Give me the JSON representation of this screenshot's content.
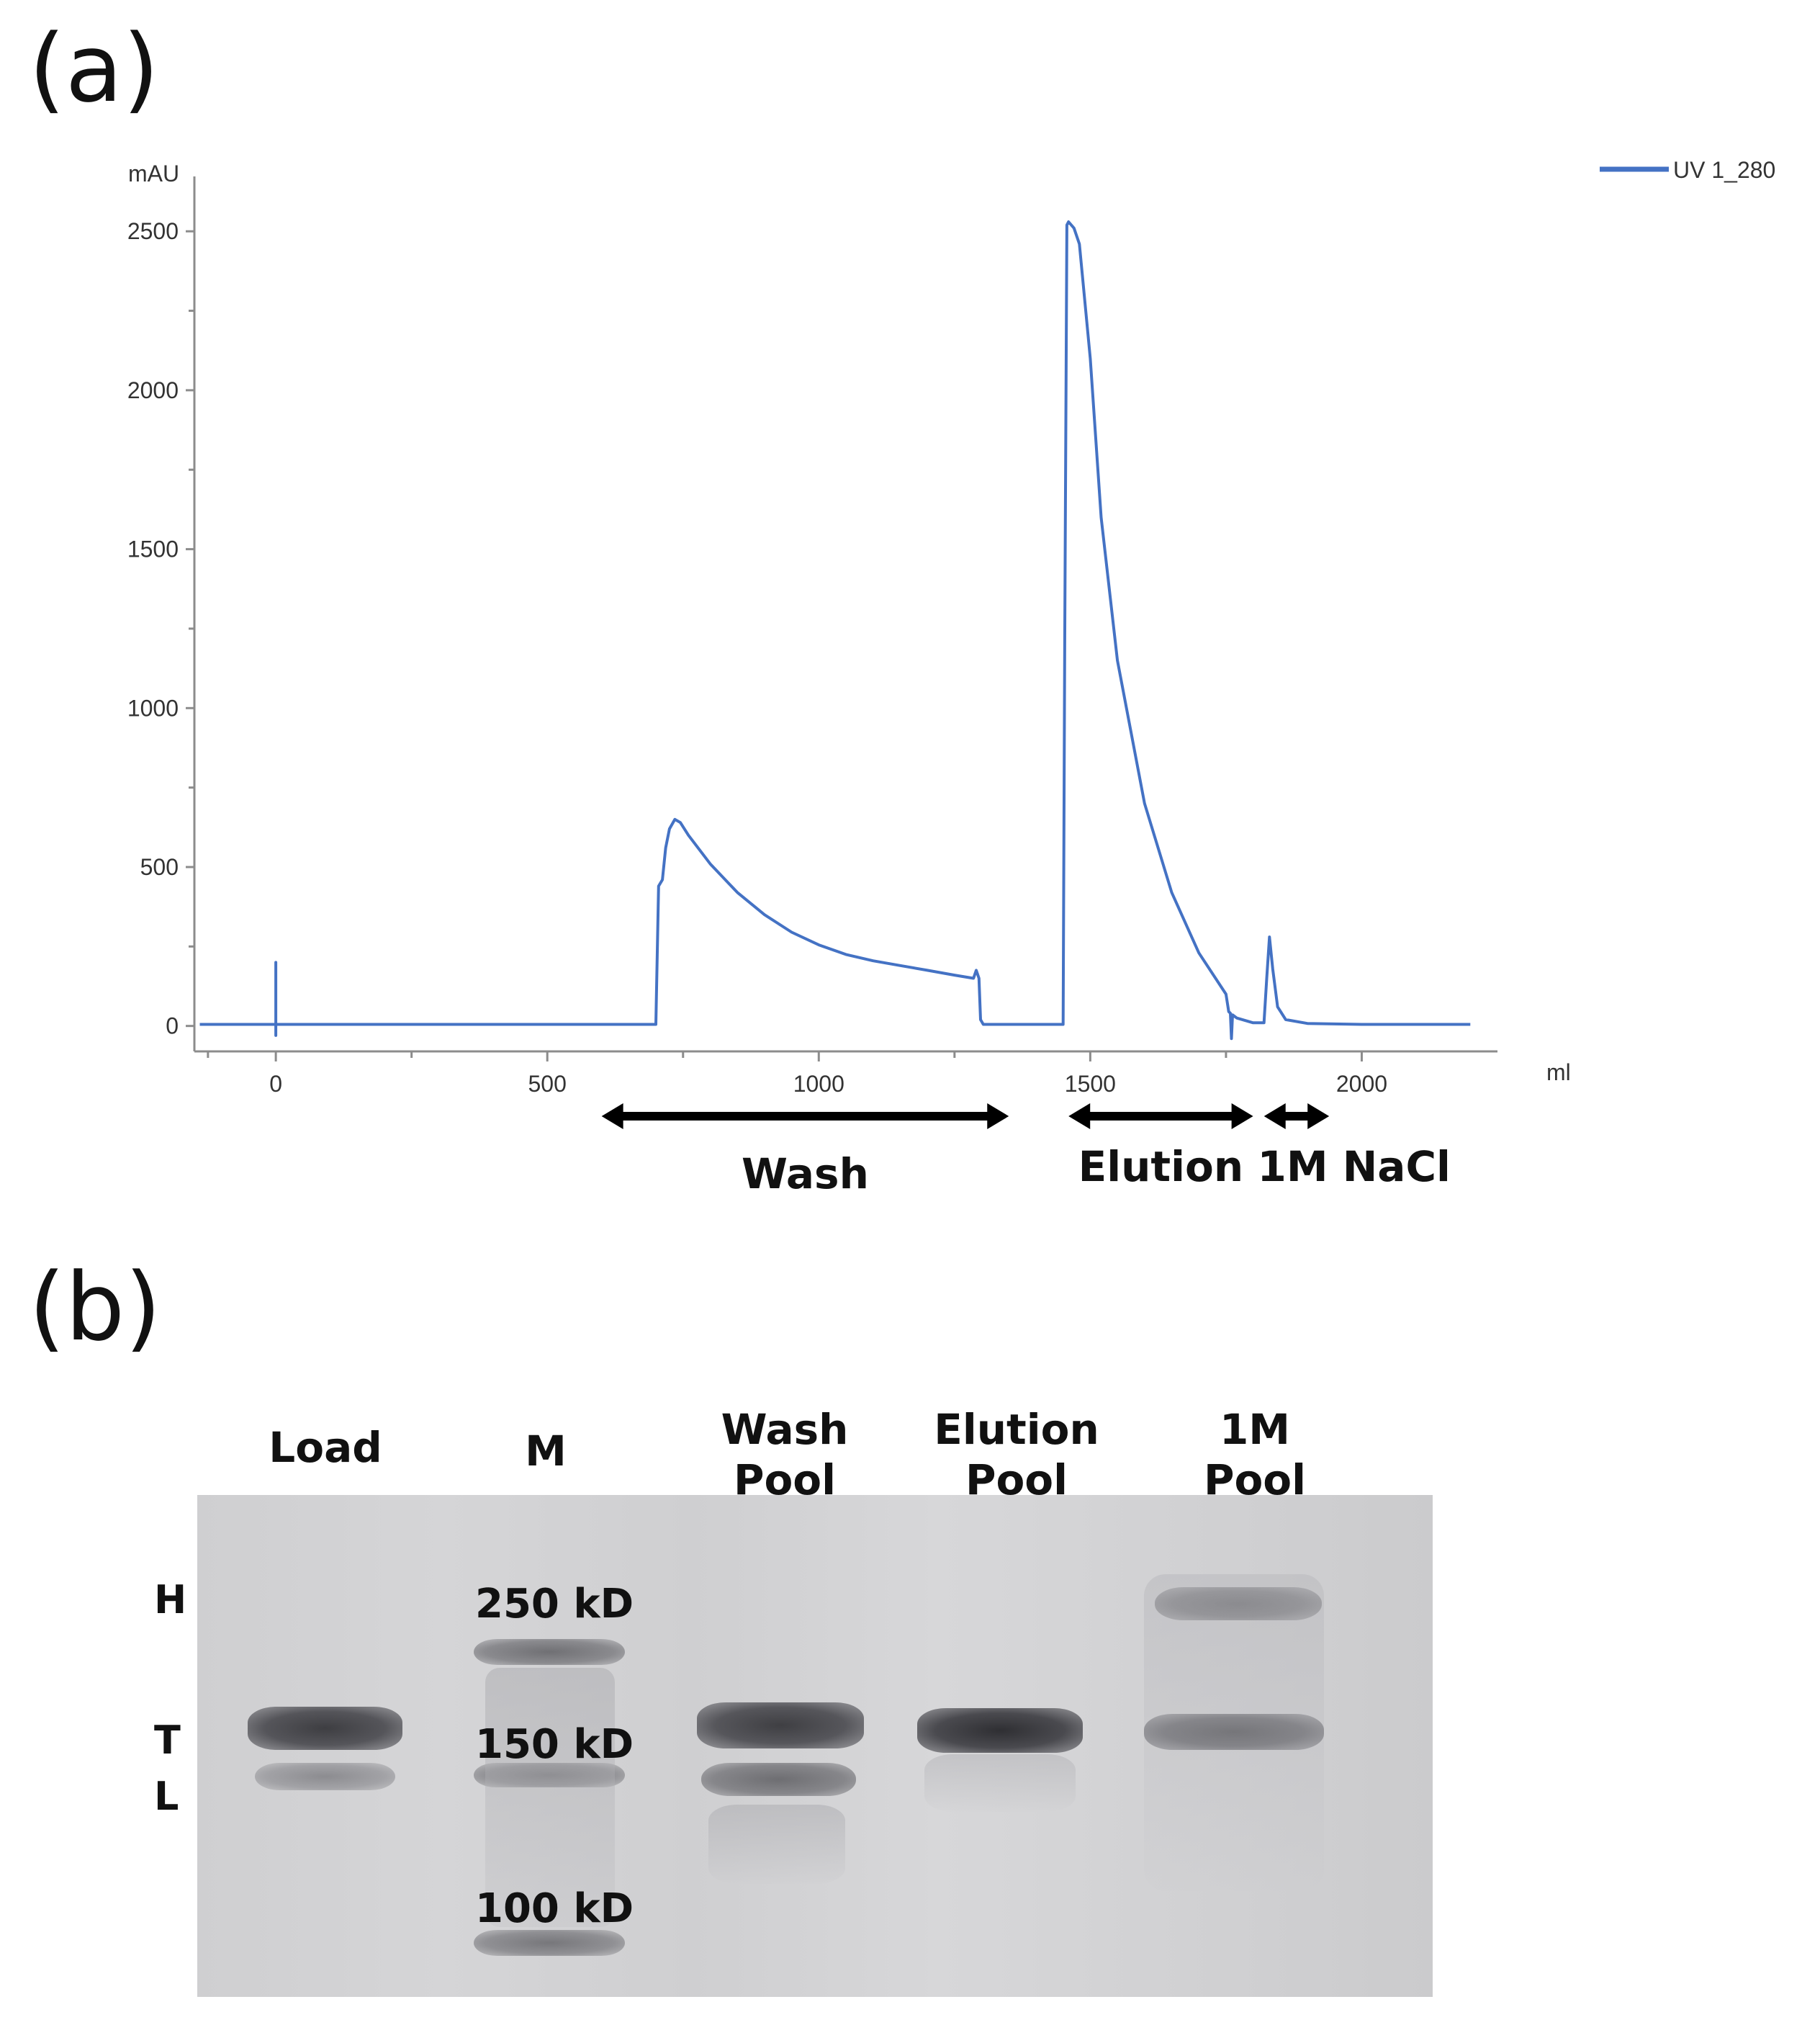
{
  "panel_a": {
    "label": "(a)",
    "chart_data": {
      "type": "line",
      "title": "",
      "xlabel": "ml",
      "ylabel": "mAU",
      "xlim": [
        -150,
        2250
      ],
      "ylim": [
        -80,
        2650
      ],
      "x_ticks": [
        0,
        500,
        1000,
        1500,
        2000
      ],
      "y_ticks": [
        0,
        500,
        1000,
        1500,
        2000,
        2500
      ],
      "grid": false,
      "legend": {
        "placement": "top-right",
        "entries": [
          "UV 1_280"
        ]
      },
      "series": [
        {
          "name": "UV 1_280",
          "color": "#4472c4",
          "x": [
            -140,
            0,
            0,
            0,
            0,
            700,
            705,
            712,
            718,
            725,
            735,
            745,
            760,
            800,
            850,
            900,
            950,
            1000,
            1050,
            1100,
            1150,
            1200,
            1250,
            1285,
            1290,
            1295,
            1298,
            1303,
            1400,
            1450,
            1453,
            1457,
            1460,
            1470,
            1480,
            1500,
            1520,
            1550,
            1600,
            1650,
            1700,
            1750,
            1755,
            1758,
            1760,
            1762,
            1770,
            1800,
            1820,
            1825,
            1830,
            1836,
            1845,
            1860,
            1900,
            2000,
            2100,
            2200
          ],
          "y": [
            5,
            5,
            200,
            -30,
            5,
            5,
            440,
            460,
            560,
            620,
            650,
            640,
            600,
            510,
            420,
            350,
            295,
            255,
            225,
            205,
            190,
            175,
            160,
            150,
            175,
            150,
            20,
            5,
            5,
            5,
            1200,
            2520,
            2530,
            2510,
            2460,
            2100,
            1600,
            1150,
            700,
            420,
            230,
            100,
            45,
            40,
            -40,
            35,
            25,
            10,
            10,
            150,
            280,
            180,
            60,
            20,
            8,
            5,
            5,
            5
          ]
        }
      ],
      "annotations": [
        {
          "text": "Wash",
          "x_from": 600,
          "x_to": 1350
        },
        {
          "text": "Elution",
          "x_from": 1460,
          "x_to": 1800
        },
        {
          "text": "1M  NaCl",
          "x_from": 1820,
          "x_to": 1940
        }
      ]
    }
  },
  "panel_b": {
    "label": "(b)",
    "lanes": [
      {
        "line1": "",
        "line2": "Load"
      },
      {
        "line1": "",
        "line2": "M"
      },
      {
        "line1": "Wash",
        "line2": "Pool"
      },
      {
        "line1": "Elution",
        "line2": "Pool"
      },
      {
        "line1": "1M",
        "line2": "Pool"
      }
    ],
    "side_labels": {
      "h": "H",
      "t": "T",
      "l": "L"
    },
    "markers": {
      "m250": "250 kD",
      "m150": "150 kD",
      "m100": "100 kD"
    }
  }
}
